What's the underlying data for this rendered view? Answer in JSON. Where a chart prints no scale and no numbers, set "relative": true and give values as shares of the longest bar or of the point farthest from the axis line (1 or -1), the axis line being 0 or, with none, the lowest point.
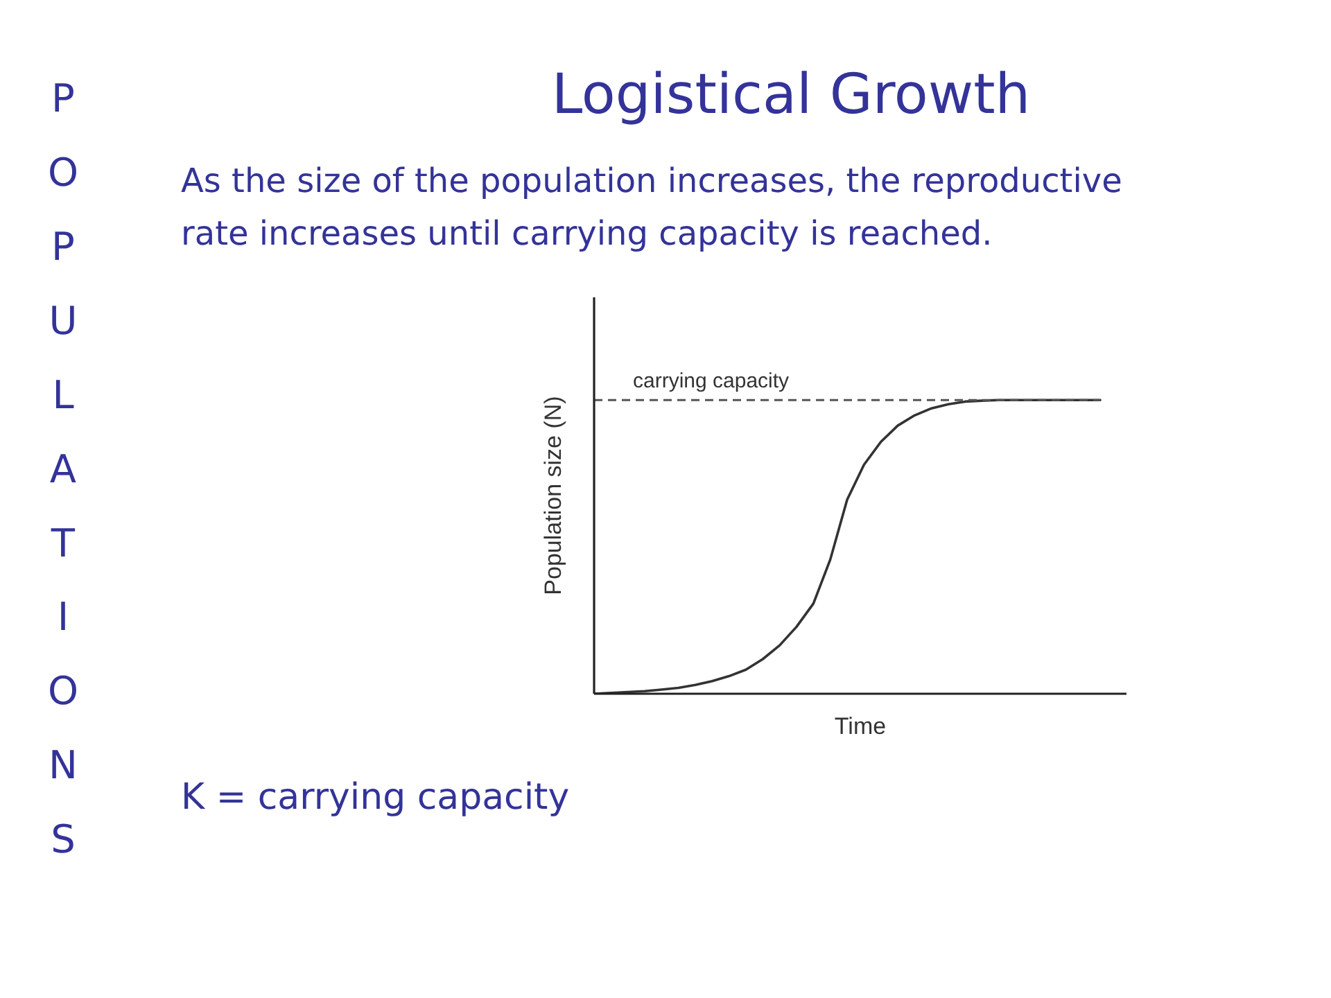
{
  "chart_data": {
    "type": "line",
    "title": "Logistical Growth",
    "subtitle": "As the size of the population increases, the reproductive rate increases until carrying capacity is reached.",
    "xlabel": "Time",
    "ylabel": "Population size (N)",
    "annotations": [
      "POPULATIONS",
      "K = carrying capacity"
    ],
    "relative": true,
    "categories": [
      null,
      null,
      null,
      null,
      null,
      null,
      null,
      null,
      null,
      null,
      null,
      null,
      null,
      null,
      null,
      null,
      null,
      null,
      null,
      null,
      null,
      null,
      null,
      null,
      null,
      null,
      null,
      null,
      null,
      null,
      null
    ],
    "series": [
      {
        "color": "#333333",
        "values": [
          0,
          0.003,
          0.006,
          0.009,
          0.014,
          0.02,
          0.03,
          0.043,
          0.06,
          0.082,
          0.118,
          0.165,
          0.228,
          0.307,
          0.457,
          0.661,
          0.78,
          0.858,
          0.913,
          0.948,
          0.972,
          0.986,
          0.995,
          0.998,
          1,
          1,
          1,
          1,
          1,
          1,
          1
        ]
      }
    ],
    "ref_lines": [
      {
        "axis": "y",
        "value": 1,
        "label": "carrying capacity",
        "color": "#555555",
        "line_style": "dashed"
      }
    ]
  }
}
